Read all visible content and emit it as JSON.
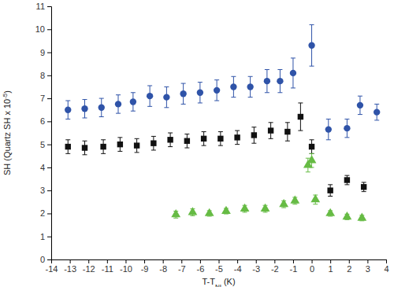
{
  "chart_data": {
    "type": "scatter",
    "xlabel": [
      "T-T",
      "NI",
      " (K)"
    ],
    "ylabel": [
      "SH (Quartz SH x 10",
      "-5",
      ")"
    ],
    "xlim": [
      -14,
      4
    ],
    "xticks": [
      -14,
      -13,
      -12,
      -11,
      -10,
      -9,
      -8,
      -7,
      -6,
      -5,
      -4,
      -3,
      -2,
      -1,
      0,
      1,
      2,
      3,
      4
    ],
    "ylim": [
      0,
      11
    ],
    "yticks": [
      0,
      1,
      2,
      3,
      4,
      5,
      6,
      7,
      8,
      9,
      10,
      11
    ],
    "grid": false,
    "series": [
      {
        "color": "#2f53a8",
        "marker": "circle",
        "x": [
          -13.1,
          -12.2,
          -11.3,
          -10.4,
          -9.6,
          -8.7,
          -7.8,
          -6.9,
          -6.0,
          -5.1,
          -4.2,
          -3.3,
          -2.4,
          -1.7,
          -1.0,
          0.0,
          0.9,
          1.9,
          2.6,
          3.5
        ],
        "values": [
          6.5,
          6.55,
          6.6,
          6.75,
          6.85,
          7.1,
          7.05,
          7.2,
          7.25,
          7.35,
          7.5,
          7.5,
          7.75,
          7.75,
          8.1,
          9.3,
          5.65,
          5.7,
          6.7,
          6.4
        ],
        "errors": [
          0.4,
          0.4,
          0.4,
          0.4,
          0.4,
          0.45,
          0.45,
          0.45,
          0.45,
          0.45,
          0.45,
          0.45,
          0.5,
          0.5,
          0.65,
          0.9,
          0.45,
          0.4,
          0.4,
          0.35
        ]
      },
      {
        "color": "#111111",
        "marker": "square",
        "x": [
          -13.1,
          -12.2,
          -11.2,
          -10.3,
          -9.4,
          -8.5,
          -7.6,
          -6.7,
          -5.8,
          -4.9,
          -4.0,
          -3.1,
          -2.2,
          -1.3,
          -0.6,
          0.0,
          1.0,
          1.9,
          2.8
        ],
        "values": [
          4.9,
          4.85,
          4.9,
          5.0,
          4.95,
          5.05,
          5.2,
          5.15,
          5.25,
          5.25,
          5.3,
          5.4,
          5.6,
          5.55,
          6.2,
          4.9,
          3.0,
          3.45,
          3.15
        ],
        "errors": [
          0.3,
          0.3,
          0.3,
          0.3,
          0.3,
          0.3,
          0.3,
          0.3,
          0.3,
          0.3,
          0.3,
          0.35,
          0.35,
          0.4,
          0.6,
          0.3,
          0.25,
          0.2,
          0.2
        ]
      },
      {
        "color": "#66bb44",
        "marker": "triangle",
        "x": [
          -7.3,
          -6.4,
          -5.5,
          -4.6,
          -3.6,
          -2.5,
          -1.5,
          -0.9,
          -0.2,
          0.0,
          0.2,
          1.0,
          1.9,
          2.7
        ],
        "values": [
          1.95,
          2.05,
          2.0,
          2.1,
          2.2,
          2.2,
          2.4,
          2.55,
          4.1,
          4.3,
          2.6,
          2.0,
          1.85,
          1.8
        ],
        "errors": [
          0.15,
          0.15,
          0.12,
          0.12,
          0.15,
          0.15,
          0.15,
          0.15,
          0.3,
          0.3,
          0.2,
          0.12,
          0.12,
          0.12
        ]
      }
    ]
  }
}
